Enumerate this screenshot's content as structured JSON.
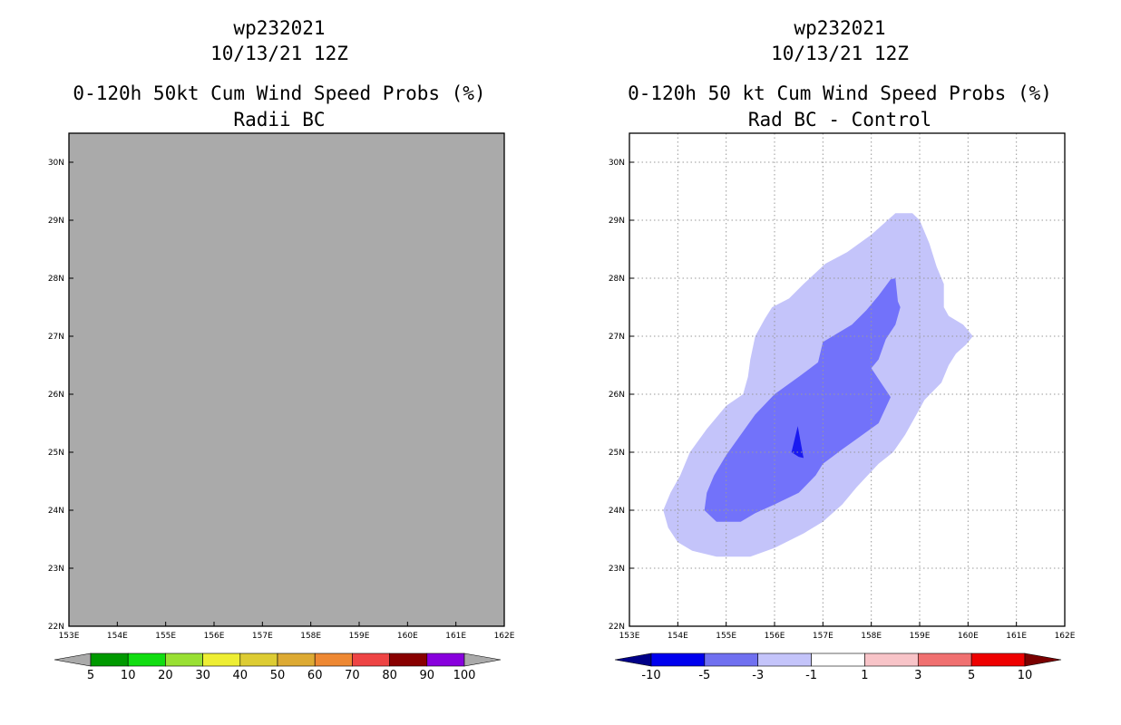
{
  "chart_data": [
    {
      "type": "heatmap",
      "storm_id": "wp232021",
      "date": "10/13/21 12Z",
      "title": "0-120h 50kt Cum Wind Speed Probs (%)",
      "subtitle": "Radii BC",
      "x_ticks": [
        "153E",
        "154E",
        "155E",
        "156E",
        "157E",
        "158E",
        "159E",
        "160E",
        "161E",
        "162E"
      ],
      "y_ticks": [
        "22N",
        "23N",
        "24N",
        "25N",
        "26N",
        "27N",
        "28N",
        "29N",
        "30N"
      ],
      "xlim": [
        153,
        162
      ],
      "ylim": [
        22,
        30.5
      ],
      "grid": false,
      "field": "no probabilities above 5% anywhere in domain (uniform gray fill)",
      "background_color": "#aaaaaa",
      "colorbar": {
        "labels": [
          "5",
          "10",
          "20",
          "30",
          "40",
          "50",
          "60",
          "70",
          "80",
          "90",
          "100"
        ],
        "colors": [
          "#009900",
          "#11dd11",
          "#99e033",
          "#eeee33",
          "#ddcc33",
          "#ddaa33",
          "#ee8833",
          "#ee4444",
          "#880000",
          "#8800dd"
        ],
        "under_color": "#aaaaaa",
        "over_color": "#aaaaaa"
      }
    },
    {
      "type": "heatmap",
      "storm_id": "wp232021",
      "date": "10/13/21 12Z",
      "title": "0-120h 50 kt Cum Wind Speed Probs (%)",
      "subtitle": "Rad BC - Control",
      "x_ticks": [
        "153E",
        "154E",
        "155E",
        "156E",
        "157E",
        "158E",
        "159E",
        "160E",
        "161E",
        "162E"
      ],
      "y_ticks": [
        "22N",
        "23N",
        "24N",
        "25N",
        "26N",
        "27N",
        "28N",
        "29N",
        "30N"
      ],
      "xlim": [
        153,
        162
      ],
      "ylim": [
        22,
        30.5
      ],
      "grid": true,
      "contours": [
        {
          "level": "-3 to -1",
          "color": "#c4c4fa",
          "points": [
            [
              158.5,
              29.12
            ],
            [
              158.85,
              29.12
            ],
            [
              159.0,
              29.0
            ],
            [
              159.2,
              28.6
            ],
            [
              159.35,
              28.2
            ],
            [
              159.5,
              27.9
            ],
            [
              159.5,
              27.5
            ],
            [
              159.6,
              27.35
            ],
            [
              159.9,
              27.2
            ],
            [
              160.1,
              27.0
            ],
            [
              159.95,
              26.85
            ],
            [
              159.75,
              26.7
            ],
            [
              159.6,
              26.5
            ],
            [
              159.45,
              26.2
            ],
            [
              159.1,
              25.9
            ],
            [
              158.9,
              25.6
            ],
            [
              158.7,
              25.3
            ],
            [
              158.45,
              25.0
            ],
            [
              158.15,
              24.8
            ],
            [
              157.7,
              24.4
            ],
            [
              157.4,
              24.1
            ],
            [
              157.0,
              23.8
            ],
            [
              156.6,
              23.6
            ],
            [
              156.0,
              23.35
            ],
            [
              155.5,
              23.2
            ],
            [
              154.8,
              23.2
            ],
            [
              154.3,
              23.3
            ],
            [
              154.0,
              23.45
            ],
            [
              153.8,
              23.7
            ],
            [
              153.7,
              24.0
            ],
            [
              153.85,
              24.3
            ],
            [
              154.05,
              24.6
            ],
            [
              154.25,
              25.0
            ],
            [
              154.6,
              25.4
            ],
            [
              155.0,
              25.8
            ],
            [
              155.35,
              26.0
            ],
            [
              155.45,
              26.3
            ],
            [
              155.5,
              26.6
            ],
            [
              155.6,
              27.0
            ],
            [
              155.8,
              27.3
            ],
            [
              155.95,
              27.5
            ],
            [
              156.3,
              27.65
            ],
            [
              156.6,
              27.9
            ],
            [
              157.05,
              28.25
            ],
            [
              157.5,
              28.45
            ],
            [
              158.0,
              28.75
            ]
          ]
        },
        {
          "level": "-5 to -3",
          "color": "#7272fa",
          "points": [
            [
              158.4,
              27.98
            ],
            [
              158.5,
              28.0
            ],
            [
              158.55,
              27.6
            ],
            [
              158.6,
              27.5
            ],
            [
              158.5,
              27.2
            ],
            [
              158.3,
              26.95
            ],
            [
              158.15,
              26.6
            ],
            [
              158.0,
              26.45
            ],
            [
              158.2,
              26.2
            ],
            [
              158.4,
              25.95
            ],
            [
              158.15,
              25.5
            ],
            [
              157.65,
              25.2
            ],
            [
              157.4,
              25.05
            ],
            [
              157.0,
              24.8
            ],
            [
              156.85,
              24.6
            ],
            [
              156.5,
              24.3
            ],
            [
              156.0,
              24.1
            ],
            [
              155.6,
              23.95
            ],
            [
              155.3,
              23.8
            ],
            [
              154.8,
              23.8
            ],
            [
              154.55,
              24.0
            ],
            [
              154.6,
              24.3
            ],
            [
              154.75,
              24.6
            ],
            [
              155.0,
              24.95
            ],
            [
              155.3,
              25.3
            ],
            [
              155.6,
              25.65
            ],
            [
              156.0,
              26.0
            ],
            [
              156.5,
              26.3
            ],
            [
              156.9,
              26.55
            ],
            [
              157.0,
              26.9
            ],
            [
              157.2,
              27.0
            ],
            [
              157.6,
              27.2
            ],
            [
              157.9,
              27.45
            ],
            [
              158.15,
              27.7
            ]
          ]
        },
        {
          "level": "-10 to -5",
          "color": "#1a1af0",
          "points": [
            [
              156.48,
              25.45
            ],
            [
              156.6,
              24.9
            ],
            [
              156.5,
              24.92
            ],
            [
              156.35,
              25.0
            ]
          ]
        }
      ],
      "colorbar": {
        "labels": [
          "-10",
          "-5",
          "-3",
          "-1",
          "1",
          "3",
          "5",
          "10"
        ],
        "colors": [
          "#0000ee",
          "#7070f0",
          "#c4c4fa",
          "#ffffff",
          "#f8c4c8",
          "#f07070",
          "#ee0000"
        ],
        "under_color": "#000088",
        "over_color": "#7a0000"
      }
    }
  ]
}
